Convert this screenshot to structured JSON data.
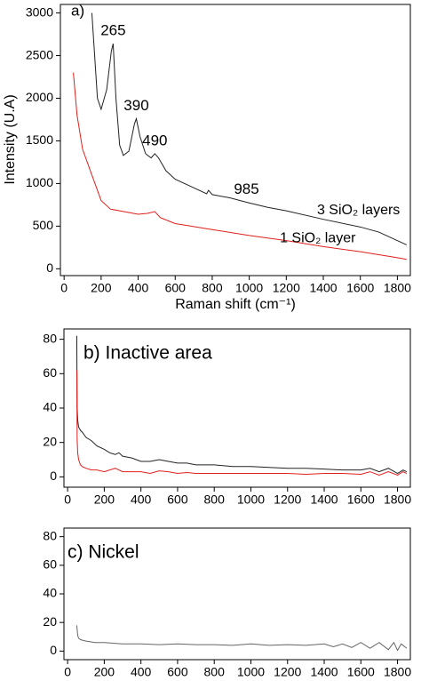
{
  "chart_data": [
    {
      "type": "line",
      "title": "a)",
      "x_label": "Raman shift (cm⁻¹)",
      "y_label": "Intensity (U.A)",
      "xlim": [
        -20,
        1870
      ],
      "ylim": [
        -80,
        3100
      ],
      "xticks": [
        0,
        200,
        400,
        600,
        800,
        1000,
        1200,
        1400,
        1600,
        1800
      ],
      "yticks": [
        0,
        500,
        1000,
        1500,
        2000,
        2500,
        3000
      ],
      "peaks": [
        265,
        390,
        490,
        985
      ],
      "series": [
        {
          "name": "3 SiO₂ layers",
          "color": "#222222",
          "x": [
            150,
            180,
            200,
            230,
            255,
            265,
            280,
            300,
            320,
            350,
            380,
            390,
            410,
            440,
            470,
            490,
            510,
            550,
            600,
            700,
            770,
            780,
            800,
            900,
            985,
            1100,
            1200,
            1400,
            1600,
            1700,
            1850
          ],
          "values": [
            3000,
            2000,
            1870,
            2100,
            2550,
            2640,
            2000,
            1450,
            1330,
            1380,
            1700,
            1760,
            1550,
            1350,
            1300,
            1350,
            1300,
            1150,
            1050,
            950,
            880,
            920,
            870,
            830,
            780,
            720,
            680,
            580,
            490,
            430,
            280
          ]
        },
        {
          "name": "1 SiO₂ layer",
          "color": "#e0201b",
          "x": [
            50,
            70,
            100,
            150,
            200,
            250,
            300,
            400,
            450,
            490,
            520,
            600,
            800,
            1000,
            1200,
            1400,
            1600,
            1800,
            1850
          ],
          "values": [
            2300,
            1800,
            1400,
            1100,
            800,
            700,
            680,
            640,
            650,
            670,
            600,
            530,
            460,
            390,
            330,
            260,
            200,
            130,
            110
          ]
        }
      ]
    },
    {
      "type": "line",
      "title": "b) Inactive area",
      "xlim": [
        -20,
        1870
      ],
      "ylim": [
        -6,
        86
      ],
      "xticks": [
        0,
        200,
        400,
        600,
        800,
        1000,
        1200,
        1400,
        1600,
        1800
      ],
      "yticks": [
        0,
        20,
        40,
        60,
        80
      ],
      "series": [
        {
          "color": "#222222",
          "x": [
            50,
            52,
            55,
            60,
            70,
            80,
            100,
            130,
            160,
            200,
            230,
            260,
            280,
            300,
            350,
            400,
            450,
            500,
            550,
            600,
            650,
            700,
            800,
            900,
            1000,
            1100,
            1200,
            1300,
            1400,
            1500,
            1600,
            1650,
            1700,
            1750,
            1800,
            1830,
            1850
          ],
          "values": [
            82,
            40,
            33,
            29,
            27,
            26,
            23,
            21,
            18,
            16,
            14,
            13,
            14,
            12,
            11,
            9,
            9,
            10,
            9,
            8,
            8,
            7,
            7,
            6,
            6,
            5.5,
            5,
            5,
            4.5,
            4,
            4,
            5,
            3,
            5,
            2,
            4,
            3
          ]
        },
        {
          "color": "#e0201b",
          "x": [
            50,
            52,
            55,
            60,
            70,
            80,
            100,
            130,
            160,
            200,
            230,
            260,
            280,
            300,
            350,
            400,
            450,
            500,
            550,
            600,
            650,
            700,
            800,
            900,
            1000,
            1100,
            1200,
            1300,
            1400,
            1500,
            1600,
            1650,
            1700,
            1750,
            1800,
            1830,
            1850
          ],
          "values": [
            62,
            22,
            14,
            10,
            7,
            6,
            5,
            4,
            4,
            3,
            4,
            5,
            4,
            3,
            3,
            3,
            2,
            3.5,
            3,
            2,
            2.5,
            2,
            2,
            2,
            2,
            2,
            2,
            1.5,
            2,
            2,
            1.5,
            3,
            1,
            3,
            1,
            3,
            2
          ]
        }
      ]
    },
    {
      "type": "line",
      "title": "c) Nickel",
      "xlim": [
        -20,
        1870
      ],
      "ylim": [
        -6,
        86
      ],
      "xticks": [
        0,
        200,
        400,
        600,
        800,
        1000,
        1200,
        1400,
        1600,
        1800
      ],
      "yticks": [
        0,
        20,
        40,
        60,
        80
      ],
      "series": [
        {
          "color": "#666666",
          "x": [
            50,
            55,
            60,
            70,
            100,
            150,
            200,
            300,
            400,
            500,
            600,
            700,
            800,
            900,
            1000,
            1100,
            1200,
            1300,
            1400,
            1450,
            1500,
            1550,
            1600,
            1650,
            1700,
            1750,
            1780,
            1800,
            1820,
            1850
          ],
          "values": [
            18,
            11,
            9,
            8,
            7,
            6,
            6,
            5,
            5,
            4.5,
            5,
            4.5,
            4.5,
            4,
            5,
            4,
            4.5,
            4,
            5,
            3,
            5,
            2.5,
            6,
            2,
            6,
            1,
            6,
            0.5,
            5,
            2
          ]
        }
      ]
    }
  ]
}
